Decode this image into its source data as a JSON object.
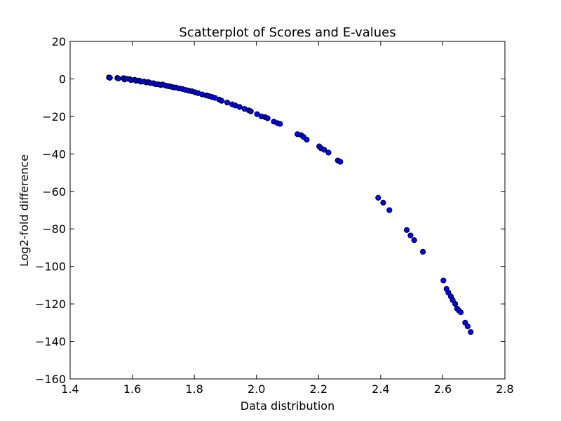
{
  "chart_data": {
    "type": "scatter",
    "title": "Scatterplot of Scores and E-values",
    "xlabel": "Data distribution",
    "ylabel": "Log2-fold difference",
    "xlim": [
      1.4,
      2.8
    ],
    "ylim": [
      -160,
      20
    ],
    "xticks": [
      "1.4",
      "1.6",
      "1.8",
      "2.0",
      "2.2",
      "2.4",
      "2.6",
      "2.8"
    ],
    "yticks": [
      "20",
      "0",
      "−20",
      "−40",
      "−60",
      "−80",
      "−100",
      "−120",
      "−140",
      "−160"
    ],
    "grid": false,
    "legend": "none",
    "marker_color": "#0000ff",
    "points": [
      [
        1.525,
        0.8
      ],
      [
        1.528,
        0.6
      ],
      [
        1.552,
        0.5
      ],
      [
        1.555,
        0.2
      ],
      [
        1.572,
        0.4
      ],
      [
        1.575,
        -0.3
      ],
      [
        1.583,
        0.1
      ],
      [
        1.592,
        -0.1
      ],
      [
        1.596,
        -0.6
      ],
      [
        1.608,
        -0.5
      ],
      [
        1.612,
        -1.0
      ],
      [
        1.622,
        -0.9
      ],
      [
        1.628,
        -1.5
      ],
      [
        1.638,
        -1.4
      ],
      [
        1.645,
        -1.9
      ],
      [
        1.652,
        -1.7
      ],
      [
        1.658,
        -2.2
      ],
      [
        1.668,
        -2.3
      ],
      [
        1.675,
        -2.8
      ],
      [
        1.684,
        -2.9
      ],
      [
        1.692,
        -3.3
      ],
      [
        1.698,
        -3.0
      ],
      [
        1.708,
        -3.6
      ],
      [
        1.716,
        -3.9
      ],
      [
        1.724,
        -4.1
      ],
      [
        1.732,
        -4.5
      ],
      [
        1.741,
        -4.6
      ],
      [
        1.752,
        -5.1
      ],
      [
        1.762,
        -5.4
      ],
      [
        1.772,
        -5.9
      ],
      [
        1.782,
        -6.3
      ],
      [
        1.792,
        -6.6
      ],
      [
        1.802,
        -7.1
      ],
      [
        1.812,
        -7.6
      ],
      [
        1.825,
        -8.3
      ],
      [
        1.838,
        -8.8
      ],
      [
        1.846,
        -9.1
      ],
      [
        1.856,
        -9.6
      ],
      [
        1.866,
        -10.1
      ],
      [
        1.88,
        -11.0
      ],
      [
        1.888,
        -11.7
      ],
      [
        1.906,
        -12.6
      ],
      [
        1.922,
        -13.6
      ],
      [
        1.932,
        -14.2
      ],
      [
        1.946,
        -15.0
      ],
      [
        1.962,
        -16.0
      ],
      [
        1.976,
        -16.8
      ],
      [
        1.982,
        -17.3
      ],
      [
        2.002,
        -18.8
      ],
      [
        2.016,
        -20.0
      ],
      [
        2.028,
        -20.4
      ],
      [
        2.036,
        -21.0
      ],
      [
        2.056,
        -22.8
      ],
      [
        2.068,
        -23.6
      ],
      [
        2.076,
        -24.0
      ],
      [
        2.132,
        -29.5
      ],
      [
        2.144,
        -30.0
      ],
      [
        2.152,
        -31.0
      ],
      [
        2.162,
        -32.4
      ],
      [
        2.202,
        -36.0
      ],
      [
        2.208,
        -37.0
      ],
      [
        2.218,
        -37.8
      ],
      [
        2.232,
        -39.3
      ],
      [
        2.262,
        -43.5
      ],
      [
        2.27,
        -44.2
      ],
      [
        2.392,
        -63.4
      ],
      [
        2.408,
        -66.0
      ],
      [
        2.428,
        -70.0
      ],
      [
        2.484,
        -80.6
      ],
      [
        2.496,
        -83.5
      ],
      [
        2.508,
        -86.0
      ],
      [
        2.536,
        -92.2
      ],
      [
        2.602,
        -107.5
      ],
      [
        2.612,
        -112.0
      ],
      [
        2.618,
        -114.0
      ],
      [
        2.626,
        -116.0
      ],
      [
        2.632,
        -118.0
      ],
      [
        2.64,
        -120.0
      ],
      [
        2.646,
        -122.5
      ],
      [
        2.652,
        -123.5
      ],
      [
        2.658,
        -124.5
      ],
      [
        2.672,
        -130.0
      ],
      [
        2.68,
        -132.0
      ],
      [
        2.69,
        -135.0
      ]
    ]
  }
}
